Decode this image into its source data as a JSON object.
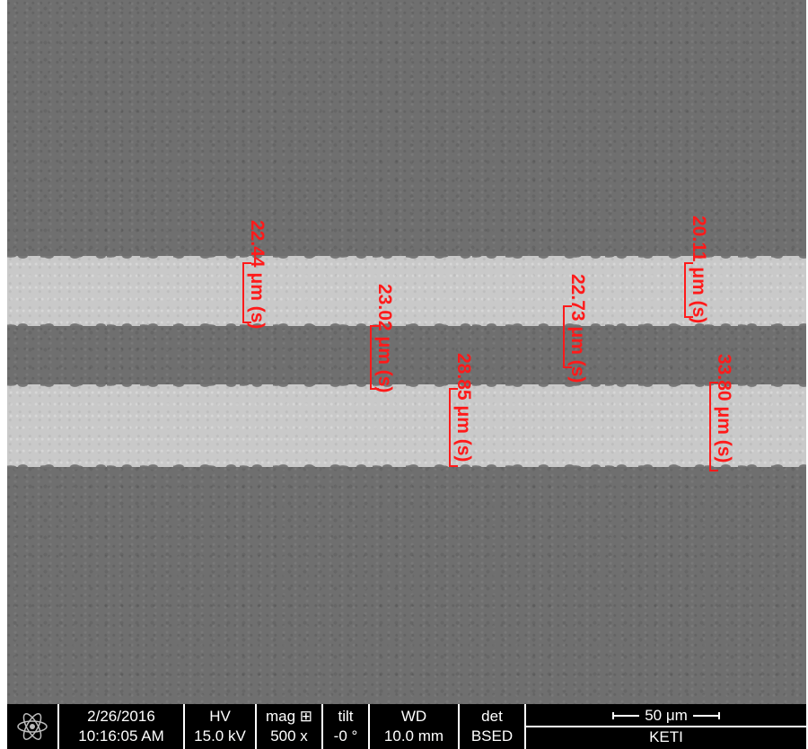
{
  "image": {
    "background_color": "#6f6f6f",
    "band_color": "#c9c9c9",
    "annotation_color": "#ff1a1a"
  },
  "measurements": [
    {
      "label": "22.44 μm (s)"
    },
    {
      "label": "23.02 μm (s)"
    },
    {
      "label": "28.85 μm (s)"
    },
    {
      "label": "22.73 μm (s)"
    },
    {
      "label": "20.11 μm (s)"
    },
    {
      "label": "33.80 μm (s)"
    }
  ],
  "databar": {
    "logo_icon": "fei-atom-logo-icon",
    "date": "2/26/2016",
    "time": "10:16:05 AM",
    "hv_label": "HV",
    "hv_value": "15.0 kV",
    "mag_label": "mag ⊞",
    "mag_value": "500 x",
    "tilt_label": "tilt",
    "tilt_value": "-0 °",
    "wd_label": "WD",
    "wd_value": "10.0 mm",
    "det_label": "det",
    "det_value": "BSED",
    "scale_label": "50 μm",
    "lab": "KETI"
  }
}
